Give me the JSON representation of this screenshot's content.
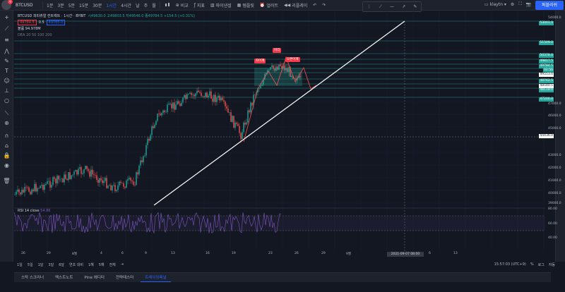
{
  "topbar": {
    "notif_count": "9",
    "symbol": "BTCUSD",
    "timeframes": [
      "1분",
      "3분",
      "5분",
      "15분",
      "30분",
      "1시간",
      "4시간",
      "날",
      "주",
      "월"
    ],
    "active_timeframe": "1시간",
    "compare_label": "비교",
    "indicators_label": "지표",
    "financials_label": "파이낸셜",
    "templates_label": "템플릿",
    "alert_label": "얼러트",
    "replay_label": "리플레이",
    "layout_name": "klaytn",
    "publish_label": "퍼블리쉬"
  },
  "legend": {
    "title": "BTCUSD 피피츄얼 컨트랙트 · 1시간 · BYBIT",
    "ohlc": "시49630.0 고49803.5 저49546.0 종49784.5 +154.5 (+0.31%)",
    "sell_price": "49784.5",
    "spread": "0.5",
    "buy_price": "49785.0",
    "indicator1": "볼륨 94.978M",
    "indicator2": "DEA 20 50 100 200"
  },
  "annotations": {
    "left_shoulder": "좌어깨",
    "head": "머리",
    "right_shoulder": "오른어깨"
  },
  "price_labels": [
    {
      "text": "53001.0",
      "bg": "#26a69a"
    },
    {
      "text": "51509.0",
      "bg": "#26a69a"
    },
    {
      "text": "50378.0",
      "bg": "#26a69a"
    },
    {
      "text": "49817.5",
      "bg": "#26a69a"
    },
    {
      "text": "49784.5",
      "bg": "#26a69a"
    },
    {
      "text": "02:56",
      "bg": "#26a69a"
    },
    {
      "text": "49553.0",
      "bg": "#ffffff"
    },
    {
      "text": "48762.5",
      "bg": "#26a69a"
    },
    {
      "text": "48540.5",
      "bg": "#ffffff"
    },
    {
      "text": "48118.0",
      "bg": "#26a69a"
    },
    {
      "text": "47200.0",
      "bg": "#26a69a"
    },
    {
      "text": "44436.0",
      "bg": "#ffffff"
    }
  ],
  "price_axis": [
    "54000.0",
    "47000.0",
    "46000.0",
    "45000.0",
    "43000.0",
    "42000.0",
    "41000.0",
    "40000.0",
    "39000.0"
  ],
  "time_axis": [
    "26",
    "29",
    "8월",
    "4",
    "6",
    "9",
    "13",
    "16",
    "19",
    "23",
    "26",
    "29",
    "9월",
    "6",
    "13"
  ],
  "time_highlight": "2021-09-07 08:00",
  "rsi": {
    "label": "RSI 14 close",
    "value": "54.86",
    "levels": [
      "80.00",
      "60.00",
      "40.00"
    ]
  },
  "bottom_timeframes": [
    "1일",
    "5일",
    "1달",
    "3달",
    "6달",
    "연초 대비",
    "1해",
    "5해",
    "전체"
  ],
  "bottom_right": {
    "clock": "15:57:03 (UTC+9)",
    "pct": "%",
    "log": "로그",
    "auto": "자동"
  },
  "bottom_tabs": [
    "스탁 스크리너",
    "텍스트노트",
    "Pine 에디터",
    "전략테스터",
    "트레이딩패널"
  ],
  "active_tab": "트레이딩패널",
  "colors": {
    "accent": "#2962ff",
    "up": "#26a69a",
    "down": "#ef5350",
    "rsi": "#7e57c2",
    "bg": "#131722"
  }
}
